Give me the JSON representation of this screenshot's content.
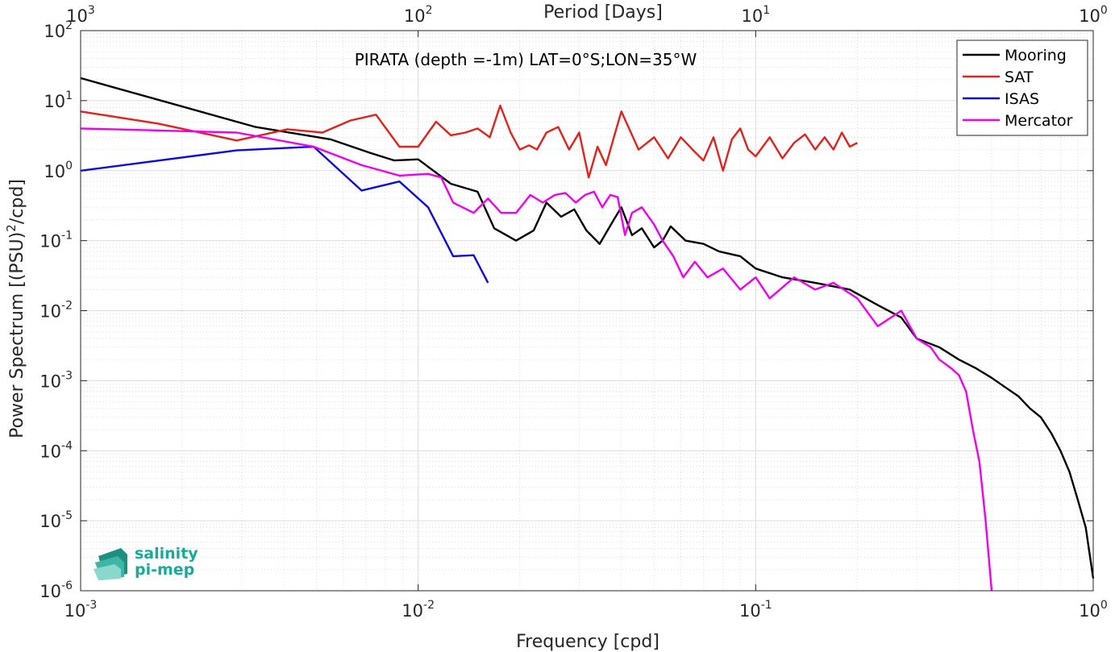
{
  "chart_data": {
    "type": "line",
    "title": "PIRATA (depth =-1m) LAT=0°S;LON=35°W",
    "xlabel": "Frequency [cpd]",
    "ylabel_main": "Power Spectrum [(PSU)",
    "ylabel_sup": "2",
    "ylabel_tail": "/cpd]",
    "top_xlabel": "Period [Days]",
    "x_scale": "log",
    "y_scale": "log",
    "xlim": [
      0.001,
      1
    ],
    "ylim": [
      1e-06,
      100
    ],
    "grid": true,
    "legend_position": "top-right",
    "x_ticks": [
      {
        "base": "10",
        "exp": "-3",
        "value": 0.001
      },
      {
        "base": "10",
        "exp": "-2",
        "value": 0.01
      },
      {
        "base": "10",
        "exp": "-1",
        "value": 0.1
      },
      {
        "base": "10",
        "exp": "0",
        "value": 1
      }
    ],
    "top_ticks": [
      {
        "base": "10",
        "exp": "3",
        "value": 0.001
      },
      {
        "base": "10",
        "exp": "2",
        "value": 0.01
      },
      {
        "base": "10",
        "exp": "1",
        "value": 0.1
      },
      {
        "base": "10",
        "exp": "0",
        "value": 1
      }
    ],
    "y_ticks": [
      {
        "base": "10",
        "exp": "2",
        "value": 100
      },
      {
        "base": "10",
        "exp": "1",
        "value": 10
      },
      {
        "base": "10",
        "exp": "0",
        "value": 1
      },
      {
        "base": "10",
        "exp": "-1",
        "value": 0.1
      },
      {
        "base": "10",
        "exp": "-2",
        "value": 0.01
      },
      {
        "base": "10",
        "exp": "-3",
        "value": 0.001
      },
      {
        "base": "10",
        "exp": "-4",
        "value": 0.0001
      },
      {
        "base": "10",
        "exp": "-5",
        "value": 1e-05
      },
      {
        "base": "10",
        "exp": "-6",
        "value": 1e-06
      }
    ],
    "series": [
      {
        "name": "Mooring",
        "color": "#000000",
        "x": [
          0.001,
          0.0033,
          0.0055,
          0.0072,
          0.0085,
          0.01,
          0.0125,
          0.015,
          0.0168,
          0.0195,
          0.022,
          0.024,
          0.0265,
          0.029,
          0.0315,
          0.0345,
          0.038,
          0.04,
          0.043,
          0.046,
          0.05,
          0.053,
          0.056,
          0.062,
          0.07,
          0.078,
          0.09,
          0.1,
          0.12,
          0.15,
          0.19,
          0.23,
          0.27,
          0.3,
          0.35,
          0.4,
          0.45,
          0.5,
          0.55,
          0.6,
          0.65,
          0.7,
          0.75,
          0.8,
          0.85,
          0.9,
          0.95,
          1.0
        ],
        "y": [
          21,
          4.2,
          2.8,
          1.8,
          1.4,
          1.45,
          0.65,
          0.5,
          0.15,
          0.1,
          0.14,
          0.35,
          0.22,
          0.28,
          0.14,
          0.09,
          0.2,
          0.3,
          0.12,
          0.15,
          0.08,
          0.1,
          0.16,
          0.1,
          0.09,
          0.07,
          0.06,
          0.04,
          0.03,
          0.025,
          0.02,
          0.012,
          0.008,
          0.004,
          0.003,
          0.002,
          0.0015,
          0.0011,
          0.0008,
          0.0006,
          0.0004,
          0.0003,
          0.00018,
          0.0001,
          5e-05,
          2e-05,
          8e-06,
          1.5e-06
        ]
      },
      {
        "name": "SAT",
        "color": "#e4211c",
        "x": [
          0.001,
          0.0017,
          0.0029,
          0.0041,
          0.0052,
          0.0063,
          0.0075,
          0.0088,
          0.01,
          0.0113,
          0.0125,
          0.0138,
          0.015,
          0.0163,
          0.0175,
          0.0188,
          0.02,
          0.0213,
          0.0225,
          0.024,
          0.026,
          0.028,
          0.03,
          0.032,
          0.034,
          0.036,
          0.038,
          0.04,
          0.045,
          0.05,
          0.055,
          0.06,
          0.065,
          0.07,
          0.075,
          0.08,
          0.085,
          0.09,
          0.095,
          0.1,
          0.11,
          0.12,
          0.13,
          0.14,
          0.15,
          0.16,
          0.17,
          0.18,
          0.19,
          0.2
        ],
        "y": [
          7,
          4.7,
          2.7,
          3.9,
          3.5,
          5.2,
          6.3,
          2.2,
          2.2,
          5.0,
          3.2,
          3.5,
          4.0,
          3.0,
          8.5,
          3.5,
          2.0,
          2.3,
          2.0,
          3.5,
          4.2,
          2.0,
          3.5,
          0.8,
          2.2,
          1.2,
          3.0,
          7.0,
          2.0,
          3.0,
          1.5,
          3.0,
          2.0,
          1.4,
          3.0,
          1.0,
          2.8,
          4.0,
          2.0,
          1.6,
          3.0,
          1.5,
          2.5,
          3.3,
          2.0,
          3.0,
          2.0,
          3.5,
          2.2,
          2.5
        ]
      },
      {
        "name": "ISAS",
        "color": "#0b0be0",
        "x": [
          0.001,
          0.0029,
          0.0049,
          0.0068,
          0.0088,
          0.0107,
          0.0127,
          0.0146,
          0.0161
        ],
        "y": [
          1.0,
          1.95,
          2.2,
          0.52,
          0.7,
          0.3,
          0.06,
          0.062,
          0.025
        ]
      },
      {
        "name": "Mercator",
        "color": "#f000f0",
        "x": [
          0.001,
          0.0029,
          0.0049,
          0.0068,
          0.0088,
          0.0107,
          0.0117,
          0.0127,
          0.0146,
          0.0161,
          0.0176,
          0.0195,
          0.0215,
          0.0234,
          0.0254,
          0.0273,
          0.0293,
          0.0312,
          0.0332,
          0.0351,
          0.0371,
          0.039,
          0.041,
          0.043,
          0.046,
          0.05,
          0.053,
          0.057,
          0.061,
          0.066,
          0.072,
          0.08,
          0.09,
          0.1,
          0.11,
          0.13,
          0.15,
          0.17,
          0.2,
          0.23,
          0.27,
          0.3,
          0.33,
          0.35,
          0.38,
          0.4,
          0.42,
          0.44,
          0.46,
          0.48,
          0.5
        ],
        "y": [
          4.0,
          3.5,
          2.2,
          1.2,
          0.85,
          0.9,
          0.8,
          0.35,
          0.25,
          0.4,
          0.25,
          0.25,
          0.45,
          0.35,
          0.45,
          0.48,
          0.35,
          0.45,
          0.5,
          0.3,
          0.45,
          0.42,
          0.12,
          0.25,
          0.3,
          0.17,
          0.1,
          0.06,
          0.03,
          0.05,
          0.03,
          0.04,
          0.02,
          0.03,
          0.015,
          0.03,
          0.02,
          0.025,
          0.015,
          0.006,
          0.01,
          0.004,
          0.003,
          0.002,
          0.0015,
          0.0012,
          0.0007,
          0.0002,
          7e-05,
          1e-05,
          1e-06
        ]
      }
    ]
  },
  "logo": {
    "line1": "salinity",
    "line2": "pi-mep"
  }
}
